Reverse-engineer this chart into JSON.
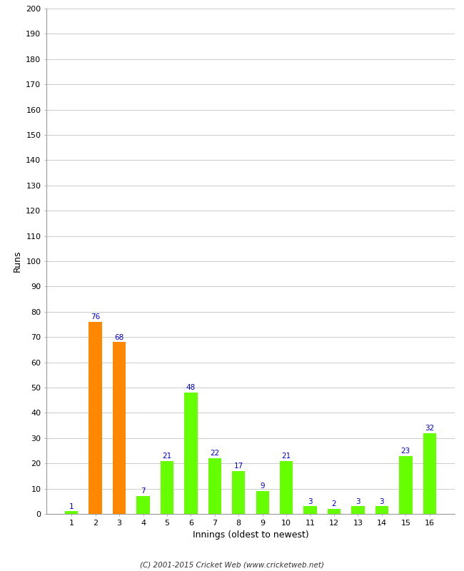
{
  "categories": [
    "1",
    "2",
    "3",
    "4",
    "5",
    "6",
    "7",
    "8",
    "9",
    "10",
    "11",
    "12",
    "13",
    "14",
    "15",
    "16"
  ],
  "values": [
    1,
    76,
    68,
    7,
    21,
    48,
    22,
    17,
    9,
    21,
    3,
    2,
    3,
    3,
    23,
    32
  ],
  "bar_colors": [
    "#66ff00",
    "#ff8800",
    "#ff8800",
    "#66ff00",
    "#66ff00",
    "#66ff00",
    "#66ff00",
    "#66ff00",
    "#66ff00",
    "#66ff00",
    "#66ff00",
    "#66ff00",
    "#66ff00",
    "#66ff00",
    "#66ff00",
    "#66ff00"
  ],
  "xlabel": "Innings (oldest to newest)",
  "ylabel": "Runs",
  "ylim": [
    0,
    200
  ],
  "yticks": [
    0,
    10,
    20,
    30,
    40,
    50,
    60,
    70,
    80,
    90,
    100,
    110,
    120,
    130,
    140,
    150,
    160,
    170,
    180,
    190,
    200
  ],
  "label_color": "#0000cc",
  "background_color": "#ffffff",
  "grid_color": "#cccccc",
  "footer": "(C) 2001-2015 Cricket Web (www.cricketweb.net)",
  "bar_width": 0.55
}
